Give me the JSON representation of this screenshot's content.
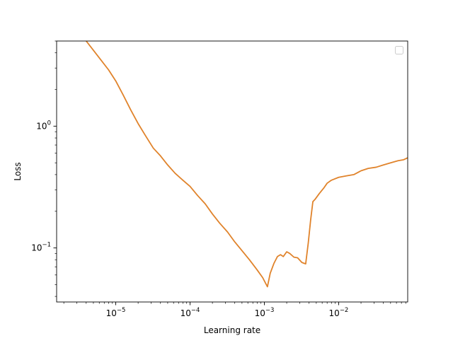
{
  "chart_data": {
    "type": "line",
    "title": "",
    "xlabel": "Learning rate",
    "ylabel": "Loss",
    "xscale": "log",
    "yscale": "log",
    "xlim": [
      1.6e-06,
      0.085
    ],
    "ylim": [
      0.036,
      5.0
    ],
    "grid": false,
    "legend": {
      "placement": "top-right",
      "entries": []
    },
    "x_ticks": [
      {
        "value": 1e-05,
        "base": "10",
        "exp": "−5"
      },
      {
        "value": 0.0001,
        "base": "10",
        "exp": "−4"
      },
      {
        "value": 0.001,
        "base": "10",
        "exp": "−3"
      },
      {
        "value": 0.01,
        "base": "10",
        "exp": "−2"
      }
    ],
    "y_ticks": [
      {
        "value": 1.0,
        "base": "10",
        "exp": "0"
      },
      {
        "value": 0.1,
        "base": "10",
        "exp": "−1"
      }
    ],
    "series": [
      {
        "color": "#e0832b",
        "x": [
          4e-06,
          5e-06,
          6.3e-06,
          8e-06,
          1e-05,
          1.26e-05,
          1.6e-05,
          2e-05,
          2.5e-05,
          3.2e-05,
          4e-05,
          5e-05,
          6.3e-05,
          8e-05,
          0.0001,
          0.000126,
          0.00016,
          0.0002,
          0.00025,
          0.00032,
          0.0004,
          0.0005,
          0.00063,
          0.0008,
          0.00095,
          0.0011,
          0.0012,
          0.00135,
          0.0015,
          0.00165,
          0.0018,
          0.002,
          0.0022,
          0.0025,
          0.0028,
          0.0032,
          0.0036,
          0.0039,
          0.0042,
          0.0045,
          0.0048,
          0.0055,
          0.0063,
          0.007,
          0.008,
          0.01,
          0.0126,
          0.016,
          0.02,
          0.025,
          0.032,
          0.04,
          0.05,
          0.063,
          0.075,
          0.085
        ],
        "y": [
          5.0,
          4.2,
          3.5,
          2.9,
          2.35,
          1.8,
          1.35,
          1.05,
          0.84,
          0.66,
          0.57,
          0.48,
          0.41,
          0.36,
          0.32,
          0.27,
          0.23,
          0.19,
          0.16,
          0.135,
          0.112,
          0.095,
          0.08,
          0.066,
          0.057,
          0.048,
          0.062,
          0.075,
          0.085,
          0.088,
          0.085,
          0.093,
          0.09,
          0.084,
          0.083,
          0.076,
          0.074,
          0.11,
          0.17,
          0.24,
          0.25,
          0.28,
          0.31,
          0.34,
          0.36,
          0.38,
          0.39,
          0.4,
          0.43,
          0.45,
          0.46,
          0.48,
          0.5,
          0.52,
          0.53,
          0.55
        ]
      }
    ]
  }
}
